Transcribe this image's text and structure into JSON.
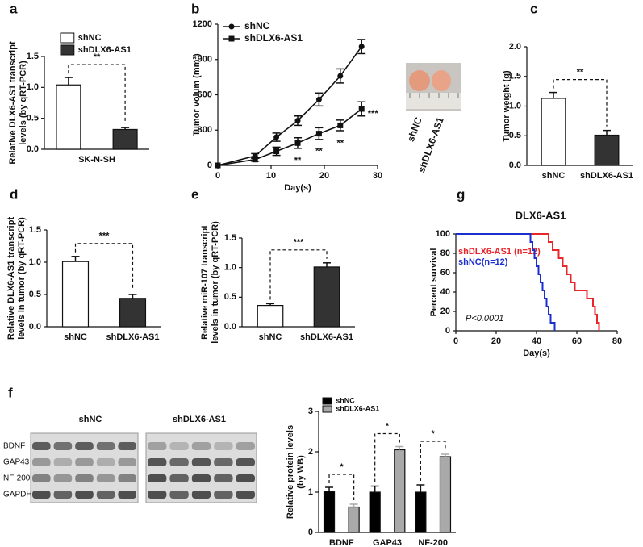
{
  "chart_data": [
    {
      "type": "bar",
      "label": "a",
      "ylabel": [
        "Relative DLX6-AS1 transcript",
        "levels (by qRT-PCR)"
      ],
      "categories": [
        "SK-N-SH"
      ],
      "series": [
        {
          "name": "shNC",
          "color": "#ffffff",
          "values": [
            1.04
          ],
          "errors": [
            0.12
          ]
        },
        {
          "name": "shDLX6-AS1",
          "color": "#333333",
          "values": [
            0.32
          ],
          "errors": [
            0.03
          ]
        }
      ],
      "ylim": [
        0,
        1.5
      ],
      "yticks": [
        {
          "value": 0,
          "label": "0.0"
        },
        {
          "value": 0.5,
          "label": "0.5"
        },
        {
          "value": 1,
          "label": "1.0"
        },
        {
          "value": 1.5,
          "label": "1.5"
        }
      ],
      "significance": [
        "**"
      ]
    },
    {
      "type": "line",
      "label": "b",
      "ylabel": [
        "Tumor volum (mm³)"
      ],
      "xlabel": "Day(s)",
      "x": [
        0,
        7,
        11,
        15,
        19,
        23,
        27
      ],
      "series": [
        {
          "name": "shNC",
          "color": "#111111",
          "marker": "circle",
          "values": [
            0,
            80,
            240,
            380,
            560,
            760,
            1010
          ],
          "errors": [
            0,
            20,
            35,
            40,
            55,
            60,
            60
          ]
        },
        {
          "name": "shDLX6-AS1",
          "color": "#111111",
          "marker": "square",
          "values": [
            0,
            50,
            120,
            190,
            270,
            340,
            480
          ],
          "errors": [
            0,
            15,
            35,
            45,
            50,
            45,
            60
          ],
          "annotations": [
            null,
            null,
            null,
            "**",
            "**",
            "**",
            "***"
          ]
        }
      ],
      "xlim": [
        0,
        30
      ],
      "xticks": [
        0,
        10,
        20,
        30
      ],
      "ylim": [
        0,
        1200
      ],
      "yticks": [
        0,
        300,
        600,
        900,
        1200
      ],
      "photo_labels": [
        "shNC",
        "shDLX6-AS1"
      ]
    },
    {
      "type": "bar",
      "label": "c",
      "ylabel": [
        "Tumor weight (g)"
      ],
      "categories": [
        "shNC",
        "shDLX6-AS1"
      ],
      "values": [
        1.13,
        0.51
      ],
      "errors": [
        0.1,
        0.08
      ],
      "colors": [
        "#ffffff",
        "#333333"
      ],
      "ylim": [
        0,
        2
      ],
      "yticks": [
        {
          "value": 0,
          "label": "0.0"
        },
        {
          "value": 0.5,
          "label": "0.5"
        },
        {
          "value": 1,
          "label": "1.0"
        },
        {
          "value": 1.5,
          "label": "1.5"
        },
        {
          "value": 2,
          "label": "2.0"
        }
      ],
      "significance": [
        "**"
      ]
    },
    {
      "type": "bar",
      "label": "d",
      "ylabel": [
        "Relative DLX6-AS1 transcript",
        "levels in tumor (by qRT-PCR)"
      ],
      "categories": [
        "shNC",
        "shDLX6-AS1"
      ],
      "values": [
        1.01,
        0.44
      ],
      "errors": [
        0.08,
        0.06
      ],
      "colors": [
        "#ffffff",
        "#333333"
      ],
      "ylim": [
        0,
        1.5
      ],
      "yticks": [
        {
          "value": 0,
          "label": "0.0"
        },
        {
          "value": 0.5,
          "label": "0.5"
        },
        {
          "value": 1,
          "label": "1.0"
        },
        {
          "value": 1.5,
          "label": "1.5"
        }
      ],
      "significance": [
        "***"
      ]
    },
    {
      "type": "bar",
      "label": "e",
      "ylabel": [
        "Relative miR-107 transcript",
        "levels in tumor (by qRT-PCR)"
      ],
      "categories": [
        "shNC",
        "shDLX6-AS1"
      ],
      "values": [
        0.36,
        1.01
      ],
      "errors": [
        0.03,
        0.07
      ],
      "colors": [
        "#ffffff",
        "#333333"
      ],
      "ylim": [
        0,
        1.5
      ],
      "yticks": [
        {
          "value": 0,
          "label": "0.0"
        },
        {
          "value": 0.5,
          "label": "0.5"
        },
        {
          "value": 1,
          "label": "1.0"
        },
        {
          "value": 1.5,
          "label": "1.5"
        }
      ],
      "significance": [
        "***"
      ]
    },
    {
      "type": "step",
      "label": "g",
      "title": "DLX6-AS1",
      "ylabel": [
        "Percent survival"
      ],
      "xlabel": "Day(s)",
      "series": [
        {
          "name": "shDLX6-AS1 (n=12)",
          "color": "#e8262b",
          "x": [
            0,
            46,
            48,
            51,
            53,
            55,
            57,
            59,
            65,
            68,
            69,
            70,
            71
          ],
          "values": [
            100,
            91.7,
            83.3,
            75,
            66.7,
            58.3,
            50,
            41.7,
            33.3,
            25,
            16.7,
            8.3,
            0
          ]
        },
        {
          "name": "shNC(n=12)",
          "color": "#1b2fcf",
          "x": [
            0,
            37,
            38,
            39,
            40,
            41,
            42,
            43,
            44,
            45,
            46,
            47,
            49
          ],
          "values": [
            100,
            91.7,
            83.3,
            75,
            66.7,
            58.3,
            50,
            41.7,
            33.3,
            25,
            16.7,
            8.3,
            0
          ]
        }
      ],
      "annotation": "P<0.0001",
      "xlim": [
        0,
        80
      ],
      "xticks": [
        0,
        20,
        40,
        60,
        80
      ],
      "ylim": [
        0,
        100
      ],
      "yticks": [
        0,
        20,
        40,
        60,
        80,
        100
      ]
    },
    {
      "type": "bar",
      "ylabel": [
        "Relative protein levels",
        "(by WB)"
      ],
      "categories": [
        "BDNF",
        "GAP43",
        "NF-200"
      ],
      "series": [
        {
          "name": "shNC",
          "color": "#000000",
          "values": [
            1.02,
            1.0,
            1.0
          ],
          "errors": [
            0.1,
            0.15,
            0.18
          ]
        },
        {
          "name": "shDLX6-AS1",
          "color": "#a9a9a9",
          "values": [
            0.63,
            2.05,
            1.88
          ],
          "errors": [
            0.07,
            0.08,
            0.06
          ]
        }
      ],
      "ylim": [
        0,
        3
      ],
      "yticks": [
        0,
        1,
        2,
        3
      ],
      "significance": [
        "*",
        "*",
        "*"
      ]
    }
  ],
  "blot": {
    "label": "f",
    "groups": [
      "shNC",
      "shDLX6-AS1"
    ],
    "rows": [
      "BDNF",
      "GAP43",
      "NF-200",
      "GAPDH"
    ]
  }
}
